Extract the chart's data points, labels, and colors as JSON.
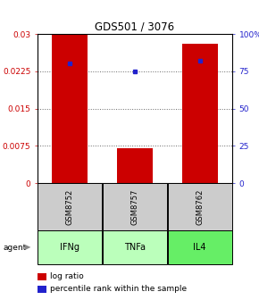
{
  "title": "GDS501 / 3076",
  "bars": [
    {
      "x": 0,
      "log_ratio": 0.03,
      "percentile": 80
    },
    {
      "x": 1,
      "log_ratio": 0.007,
      "percentile": 75
    },
    {
      "x": 2,
      "log_ratio": 0.028,
      "percentile": 82
    }
  ],
  "bar_color": "#cc0000",
  "dot_color": "#2222cc",
  "bar_width": 0.55,
  "ylim_left": [
    0,
    0.03
  ],
  "ylim_right": [
    0,
    100
  ],
  "yticks_left": [
    0,
    0.0075,
    0.015,
    0.0225,
    0.03
  ],
  "ytick_labels_left": [
    "0",
    "0.0075",
    "0.015",
    "0.0225",
    "0.03"
  ],
  "yticks_right": [
    0,
    25,
    50,
    75,
    100
  ],
  "ytick_labels_right": [
    "0",
    "25",
    "50",
    "75",
    "100%"
  ],
  "sample_names": [
    "GSM8752",
    "GSM8757",
    "GSM8762"
  ],
  "agent_labels": [
    "IFNg",
    "TNFa",
    "IL4"
  ],
  "agent_bg_colors": [
    "#bbffbb",
    "#bbffbb",
    "#66ee66"
  ],
  "sample_bg_color": "#cccccc",
  "legend_bar_label": "log ratio",
  "legend_dot_label": "percentile rank within the sample",
  "grid_color": "#666666",
  "xlim": [
    -0.5,
    2.5
  ],
  "bg_color": "#ffffff"
}
